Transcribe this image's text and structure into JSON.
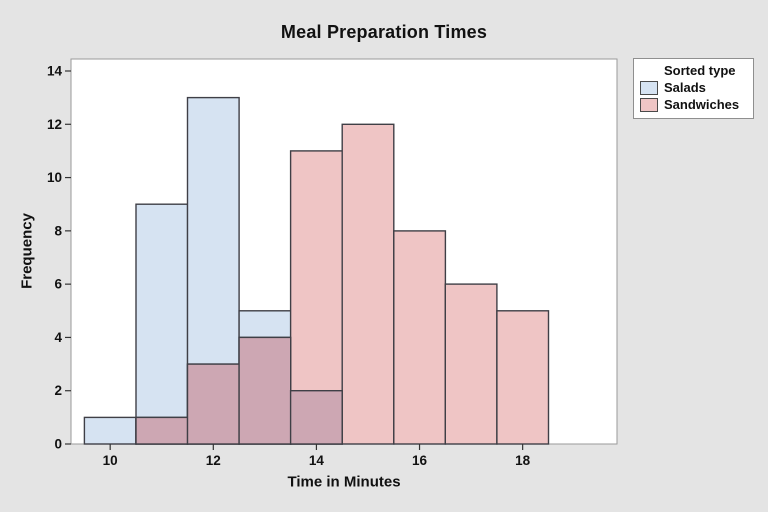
{
  "window": {
    "background": "#e4e4e4",
    "plot_background": "#ffffff",
    "plot_border_color": "#9a9a9a"
  },
  "title": "Meal Preparation Times",
  "axes": {
    "x_label": "Time in Minutes",
    "y_label": "Frequency"
  },
  "legend": {
    "title": "Sorted type",
    "entries": [
      {
        "label": "Salads",
        "color": "#d6e3f2"
      },
      {
        "label": "Sandwiches",
        "color": "#efc5c5"
      }
    ]
  },
  "chart_data": {
    "type": "bar",
    "subtype": "overlaid-histogram",
    "title": "Meal Preparation Times",
    "xlabel": "Time in Minutes",
    "ylabel": "Frequency",
    "bin_width": 1,
    "bin_centers": [
      10,
      11,
      12,
      13,
      14,
      15,
      16,
      17,
      18
    ],
    "series": [
      {
        "name": "Salads",
        "color": "#d6e3f2",
        "values": [
          1,
          9,
          13,
          5,
          2,
          0,
          0,
          0,
          0
        ]
      },
      {
        "name": "Sandwiches",
        "color": "#efc5c5",
        "values": [
          0,
          1,
          3,
          4,
          11,
          12,
          8,
          6,
          5
        ]
      }
    ],
    "overlap_color": "#cda7b3",
    "bar_border_color": "#3f3f46",
    "xticks": [
      10,
      12,
      14,
      16,
      18
    ],
    "yticks": [
      0,
      2,
      4,
      6,
      8,
      10,
      12,
      14
    ],
    "xlim": [
      9.24,
      19.83
    ],
    "ylim": [
      0,
      14
    ],
    "grid": false,
    "legend_position": "top-right-outside"
  }
}
